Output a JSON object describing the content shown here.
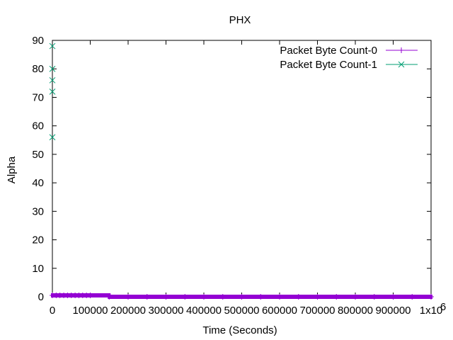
{
  "chart_data": {
    "type": "scatter",
    "title": "PHX",
    "xlabel": "Time (Seconds)",
    "ylabel": "Alpha",
    "xlim": [
      0,
      1000000
    ],
    "ylim": [
      0,
      90
    ],
    "x_scale_label": "x10",
    "x_scale_exponent": "6",
    "x_ticks": [
      0,
      100000,
      200000,
      300000,
      400000,
      500000,
      600000,
      700000,
      800000,
      900000,
      1000000
    ],
    "x_tick_labels": [
      "0",
      "100000",
      "200000",
      "300000",
      "400000",
      "500000",
      "600000",
      "700000",
      "800000",
      "900000",
      "1x10"
    ],
    "y_ticks": [
      0,
      10,
      20,
      30,
      40,
      50,
      60,
      70,
      80,
      90
    ],
    "y_tick_labels": [
      "0",
      "10",
      "20",
      "30",
      "40",
      "50",
      "60",
      "70",
      "80",
      "90"
    ],
    "grid": false,
    "legend_position": "top-right",
    "series": [
      {
        "name": "Packet Byte Count-0",
        "color": "#9400d3",
        "marker": "plus",
        "note_x": "dense points along the x axis",
        "x": [
          0,
          10000,
          20000,
          30000,
          40000,
          50000,
          60000,
          70000,
          80000,
          90000,
          100000,
          150000,
          200000,
          250000,
          300000,
          350000,
          400000,
          450000,
          500000,
          550000,
          600000,
          650000,
          700000,
          750000,
          800000,
          850000,
          900000,
          950000,
          1000000
        ],
        "y": [
          0.5,
          0.5,
          0.5,
          0.5,
          0.5,
          0.5,
          0.5,
          0.5,
          0.5,
          0.5,
          0.5,
          0,
          0,
          0,
          0,
          0,
          0,
          0,
          0,
          0,
          0,
          0,
          0,
          0,
          0,
          0,
          0,
          0,
          0
        ]
      },
      {
        "name": "Packet Byte Count-1",
        "color": "#009e73",
        "marker": "cross",
        "x": [
          0,
          0,
          0,
          0,
          0
        ],
        "y": [
          88,
          80,
          76,
          72,
          56
        ]
      }
    ]
  }
}
